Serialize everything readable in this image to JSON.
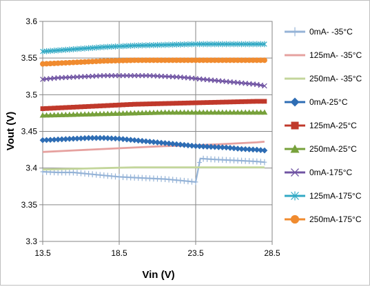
{
  "chart_data": {
    "type": "line",
    "title": "",
    "xlabel": "Vin (V)",
    "ylabel": "Vout (V)",
    "xlim": [
      13.5,
      28.5
    ],
    "ylim": [
      3.3,
      3.6
    ],
    "xticks": [
      13.5,
      18.5,
      23.5,
      28.5
    ],
    "xtick_labels": [
      "13.5",
      "18.5",
      "23.5",
      "28.5"
    ],
    "yticks": [
      3.3,
      3.35,
      3.4,
      3.45,
      3.5,
      3.55,
      3.6
    ],
    "ytick_labels": [
      "3.3",
      "3.35",
      "3.4",
      "3.45",
      "3.5",
      "3.55",
      "3.6"
    ],
    "grid": true,
    "legend_position": "right",
    "series": [
      {
        "name": "0mA- -35°C",
        "color": "#95B3D7",
        "marker": "plus",
        "x": [
          13.5,
          14.5,
          15.5,
          16.5,
          17.5,
          18.5,
          19.5,
          20.5,
          21.5,
          22.5,
          23.5,
          23.8,
          24.5,
          25.5,
          26.5,
          27.5,
          28.0
        ],
        "y": [
          3.395,
          3.394,
          3.394,
          3.392,
          3.39,
          3.388,
          3.387,
          3.386,
          3.385,
          3.383,
          3.381,
          3.413,
          3.412,
          3.411,
          3.41,
          3.409,
          3.408
        ]
      },
      {
        "name": "125mA- -35°C",
        "color": "#E6A19F",
        "marker": "none",
        "x": [
          13.5,
          15.5,
          17.5,
          19.5,
          21.5,
          23.5,
          25.5,
          27.5,
          28.0
        ],
        "y": [
          3.422,
          3.424,
          3.426,
          3.428,
          3.43,
          3.431,
          3.433,
          3.435,
          3.436
        ]
      },
      {
        "name": "250mA- -35°C",
        "color": "#C3D69B",
        "marker": "none",
        "x": [
          13.5,
          15.5,
          17.5,
          19.5,
          21.5,
          23.5,
          25.5,
          27.5,
          28.0
        ],
        "y": [
          3.398,
          3.399,
          3.4,
          3.401,
          3.401,
          3.401,
          3.401,
          3.401,
          3.401
        ]
      },
      {
        "name": "0mA-25°C",
        "color": "#2E6DB4",
        "marker": "diamond",
        "x": [
          13.5,
          14.5,
          15.5,
          16.5,
          17.5,
          18.5,
          19.5,
          20.5,
          21.5,
          22.5,
          23.5,
          24.5,
          25.5,
          26.5,
          27.5,
          28.0
        ],
        "y": [
          3.438,
          3.439,
          3.44,
          3.441,
          3.441,
          3.44,
          3.438,
          3.436,
          3.434,
          3.432,
          3.43,
          3.429,
          3.428,
          3.426,
          3.425,
          3.424
        ]
      },
      {
        "name": "125mA-25°C",
        "color": "#C0392B",
        "marker": "square",
        "x": [
          13.5,
          15.5,
          17.5,
          19.5,
          21.5,
          23.5,
          25.5,
          27.5,
          28.0
        ],
        "y": [
          3.481,
          3.483,
          3.485,
          3.487,
          3.488,
          3.489,
          3.49,
          3.491,
          3.491
        ]
      },
      {
        "name": "250mA-25°C",
        "color": "#77A13B",
        "marker": "triangle",
        "x": [
          13.5,
          15.5,
          17.5,
          19.5,
          21.5,
          23.5,
          25.5,
          27.5,
          28.0
        ],
        "y": [
          3.472,
          3.473,
          3.474,
          3.475,
          3.476,
          3.476,
          3.476,
          3.476,
          3.476
        ]
      },
      {
        "name": "0mA-175°C",
        "color": "#7054A3",
        "marker": "x",
        "x": [
          13.5,
          14.5,
          15.5,
          16.5,
          17.5,
          18.5,
          19.5,
          20.5,
          21.5,
          22.5,
          23.5,
          24.5,
          25.5,
          26.5,
          27.5,
          28.0
        ],
        "y": [
          3.521,
          3.523,
          3.524,
          3.525,
          3.526,
          3.526,
          3.526,
          3.526,
          3.525,
          3.524,
          3.522,
          3.52,
          3.518,
          3.516,
          3.514,
          3.512
        ]
      },
      {
        "name": "125mA-175°C",
        "color": "#31A9C4",
        "marker": "asterisk",
        "x": [
          13.5,
          15.5,
          17.5,
          19.5,
          21.5,
          23.5,
          25.5,
          27.5,
          28.0
        ],
        "y": [
          3.559,
          3.562,
          3.565,
          3.567,
          3.568,
          3.569,
          3.569,
          3.569,
          3.569
        ]
      },
      {
        "name": "250mA-175°C",
        "color": "#F08B2F",
        "marker": "circle",
        "x": [
          13.5,
          15.5,
          17.5,
          19.5,
          21.5,
          23.5,
          25.5,
          27.5,
          28.0
        ],
        "y": [
          3.542,
          3.544,
          3.546,
          3.547,
          3.547,
          3.547,
          3.547,
          3.547,
          3.547
        ]
      }
    ]
  }
}
